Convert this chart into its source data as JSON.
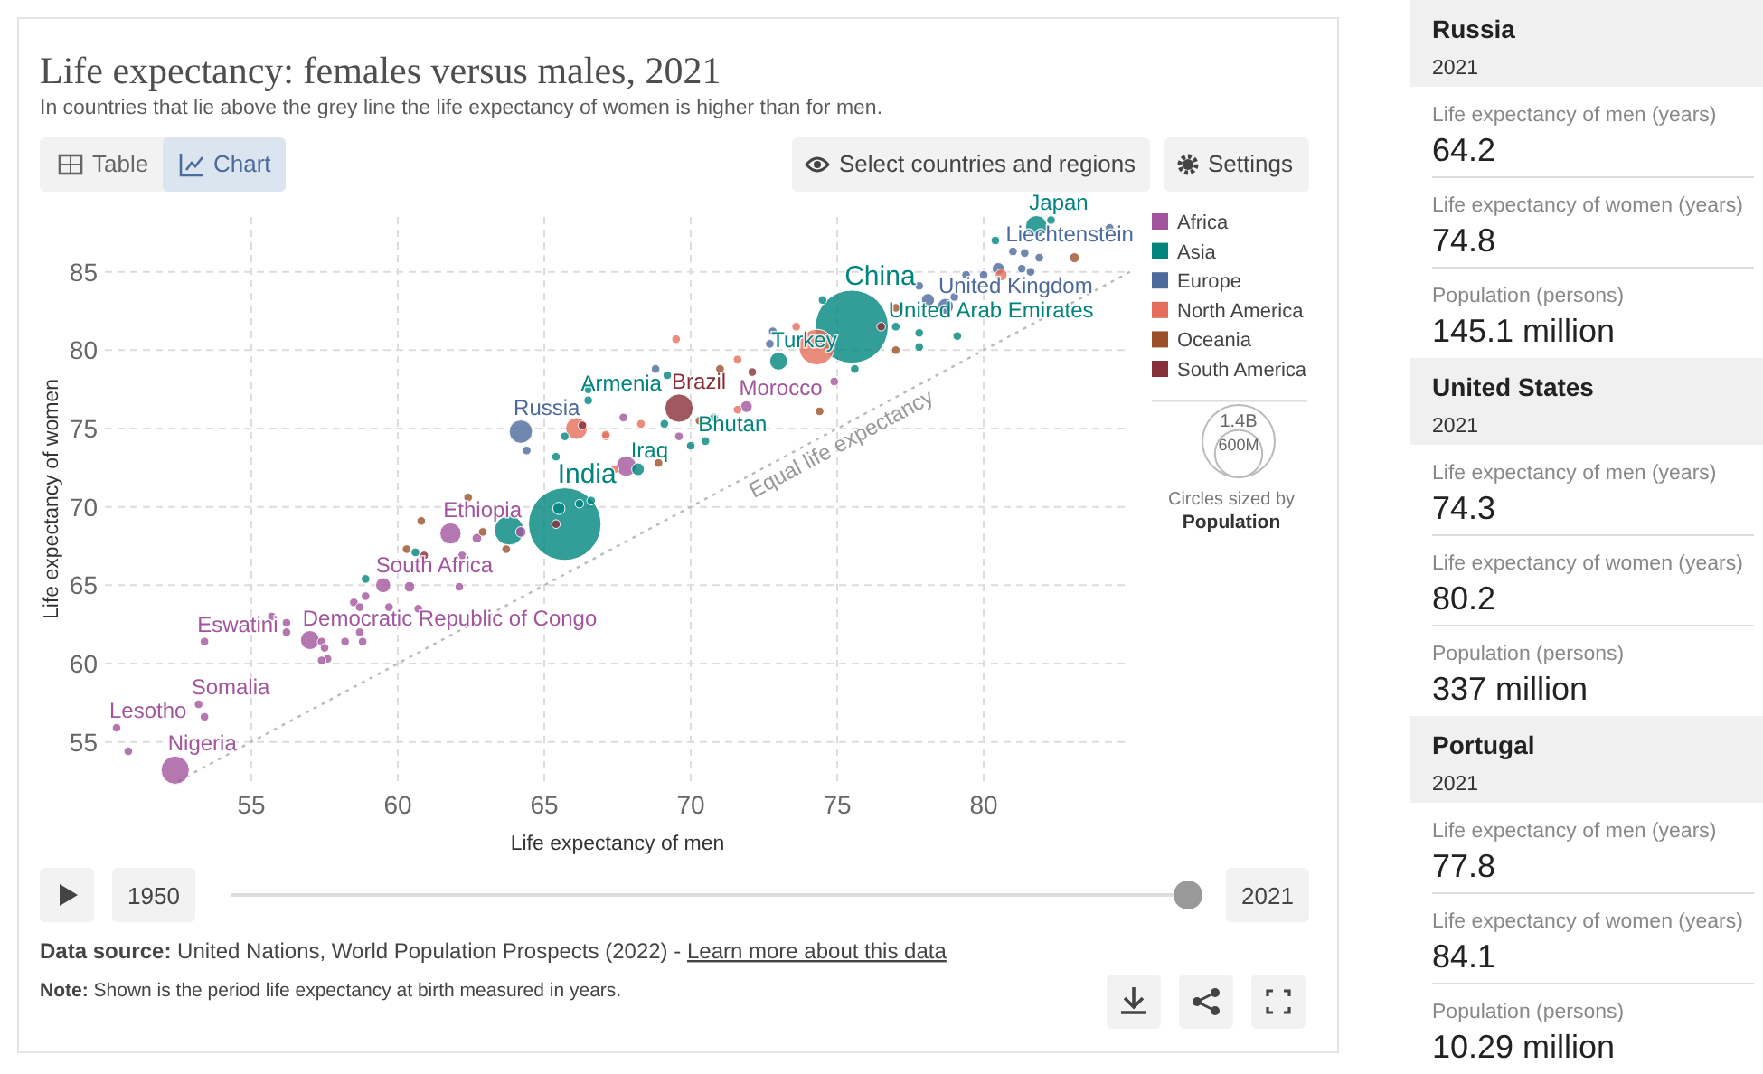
{
  "chart_data": [
    {
      "type": "bubble",
      "title": "Life expectancy: females versus males, 2021",
      "subtitle": "In countries that lie above the grey line the life expectancy of women is higher than for men.",
      "xlabel": "Life expectancy of men",
      "ylabel": "Life expectancy of women",
      "xlim": [
        50,
        85
      ],
      "ylim": [
        52.5,
        88.5
      ],
      "xticks": [
        55,
        60,
        65,
        70,
        75,
        80
      ],
      "yticks": [
        55,
        60,
        65,
        70,
        75,
        80,
        85
      ],
      "grid": true,
      "legend": "top right",
      "marker": "circle",
      "size_legend": [
        {
          "value": 1400,
          "label": "1.4B"
        },
        {
          "value": 600,
          "label": "600M"
        }
      ],
      "series": [
        {
          "name": "Africa",
          "color": "#a2559c",
          "x": [
            52.4,
            50.4,
            50.8,
            53.2,
            53.4,
            53.4,
            55.7,
            56.2,
            56.2,
            57.0,
            57.4,
            57.5,
            57.6,
            57.4,
            58.2,
            58.8,
            58.7,
            58.5,
            58.7,
            58.9,
            59.5,
            59.7,
            60.7,
            60.4,
            62.1,
            62.2,
            61.8,
            62.7,
            64.2,
            67.8,
            67.7,
            69.6,
            71.9,
            74.9
          ],
          "values": [
            53.2,
            55.9,
            54.4,
            57.4,
            56.6,
            61.4,
            63.0,
            62.6,
            62.0,
            61.5,
            61.4,
            61.0,
            60.3,
            60.2,
            61.4,
            61.4,
            62.0,
            63.9,
            63.6,
            64.3,
            65.0,
            63.6,
            63.5,
            64.9,
            64.9,
            66.9,
            68.3,
            68.0,
            68.4,
            72.6,
            75.7,
            74.5,
            76.4,
            78.0
          ],
          "sizes": [
            213,
            20,
            20,
            20,
            20,
            20,
            20,
            20,
            20,
            96,
            20,
            20,
            20,
            20,
            20,
            20,
            20,
            20,
            20,
            20,
            60,
            20,
            20,
            30,
            20,
            20,
            120,
            25,
            30,
            109,
            20,
            20,
            37,
            20
          ]
        },
        {
          "name": "Asia",
          "color": "#00847e",
          "x": [
            58.9,
            60.6,
            63.8,
            65.7,
            65.5,
            66.6,
            66.2,
            65.4,
            65.7,
            66.5,
            66.5,
            68.2,
            69.2,
            70.8,
            69.1,
            70.0,
            70.5,
            73.0,
            74.5,
            75.5,
            75.6,
            77.0,
            77.8,
            77.8,
            79.1,
            80.4,
            81.8,
            82.3
          ],
          "values": [
            65.4,
            67.1,
            68.5,
            68.9,
            69.9,
            70.4,
            70.2,
            73.2,
            74.5,
            77.5,
            76.8,
            72.4,
            78.4,
            75.7,
            75.3,
            73.9,
            74.2,
            79.3,
            83.2,
            81.5,
            78.8,
            81.5,
            81.1,
            80.2,
            80.9,
            87.0,
            87.9,
            88.3
          ],
          "sizes": [
            20,
            20,
            231,
            1408,
            40,
            20,
            20,
            20,
            20,
            20,
            20,
            43,
            20,
            20,
            20,
            20,
            20,
            85,
            20,
            1425,
            20,
            20,
            20,
            20,
            20,
            20,
            124,
            20
          ]
        },
        {
          "name": "Europe",
          "color": "#4c6a9c",
          "x": [
            64.2,
            64.4,
            68.8,
            72.8,
            72.7,
            78.1,
            78.7,
            77.8,
            79.0,
            79.4,
            80.0,
            80.5,
            81.0,
            81.4,
            81.9,
            81.3,
            81.6,
            84.3
          ],
          "values": [
            74.8,
            73.6,
            78.8,
            81.2,
            80.4,
            83.2,
            82.8,
            84.1,
            83.4,
            84.8,
            84.8,
            85.2,
            86.3,
            86.2,
            85.9,
            85.2,
            85.0,
            87.8
          ],
          "sizes": [
            145.1,
            20,
            20,
            20,
            20,
            45,
            67,
            20,
            20,
            20,
            20,
            40,
            20,
            20,
            20,
            20,
            20,
            20
          ]
        },
        {
          "name": "North America",
          "color": "#e56e5a",
          "x": [
            66.1,
            67.1,
            67.4,
            68.3,
            67.1,
            69.5,
            71.6,
            71.6,
            73.6,
            74.3,
            80.6
          ],
          "values": [
            75.0,
            74.5,
            72.4,
            75.3,
            74.6,
            80.7,
            79.4,
            76.2,
            81.5,
            80.2,
            84.8
          ],
          "sizes": [
            126,
            20,
            20,
            20,
            20,
            20,
            20,
            20,
            20,
            337,
            38
          ]
        },
        {
          "name": "Oceania",
          "color": "#9a5129",
          "x": [
            60.3,
            60.8,
            62.4,
            62.9,
            63.7,
            68.9,
            71.0,
            70.3,
            74.4,
            77.0,
            77.0,
            83.1
          ],
          "values": [
            67.3,
            69.1,
            70.6,
            68.4,
            67.3,
            72.8,
            78.8,
            75.5,
            76.1,
            82.7,
            80.0,
            85.9
          ],
          "sizes": [
            20,
            20,
            20,
            20,
            20,
            20,
            20,
            20,
            20,
            20,
            20,
            26
          ]
        },
        {
          "name": "South America",
          "color": "#883039",
          "x": [
            60.9,
            65.4,
            66.3,
            69.6,
            72.1,
            76.5
          ],
          "values": [
            66.9,
            68.9,
            75.2,
            76.3,
            78.6,
            81.5
          ],
          "sizes": [
            20,
            20,
            20,
            214,
            20,
            20
          ]
        },
        {
          "name": "Equal life expectancy",
          "type": "line",
          "color": "#bbbbbb",
          "line_style": "dotted",
          "marker": "none",
          "x": [
            52.5,
            85
          ],
          "values": [
            52.5,
            85
          ]
        }
      ],
      "annotations": [
        "Table",
        "Chart",
        "Select countries and regions",
        "Settings",
        "1950",
        "2021",
        "Circles sized by",
        "Population",
        "Data source: United Nations, World Population Prospects (2022) - Learn more about this data",
        "Note: Shown is the period life expectancy at birth measured in years.",
        {
          "text": "Nigeria",
          "x": 52.4,
          "y": 53.2
        },
        {
          "text": "Lesotho",
          "x": 50.4,
          "y": 55.9
        },
        {
          "text": "Somalia",
          "x": 53.2,
          "y": 57.4
        },
        {
          "text": "Eswatini",
          "x": 53.4,
          "y": 61.4
        },
        {
          "text": "Democratic Republic of Congo",
          "x": 57.0,
          "y": 61.5
        },
        {
          "text": "South Africa",
          "x": 59.5,
          "y": 65.0
        },
        {
          "text": "Ethiopia",
          "x": 61.8,
          "y": 68.3
        },
        {
          "text": "India",
          "x": 65.7,
          "y": 68.9
        },
        {
          "text": "Russia",
          "x": 64.2,
          "y": 74.8
        },
        {
          "text": "Armenia",
          "x": 66.5,
          "y": 76.8
        },
        {
          "text": "Iraq",
          "x": 68.2,
          "y": 72.4
        },
        {
          "text": "Brazil",
          "x": 69.6,
          "y": 76.3
        },
        {
          "text": "Bhutan",
          "x": 70.5,
          "y": 74.2
        },
        {
          "text": "Morocco",
          "x": 71.9,
          "y": 76.4
        },
        {
          "text": "Turkey",
          "x": 73.0,
          "y": 79.3
        },
        {
          "text": "China",
          "x": 75.5,
          "y": 81.5
        },
        {
          "text": "United Arab Emirates",
          "x": 77.0,
          "y": 81.5
        },
        {
          "text": "United Kingdom",
          "x": 78.7,
          "y": 82.8
        },
        {
          "text": "Liechtenstein",
          "x": 81.0,
          "y": 86.3
        },
        {
          "text": "Japan",
          "x": 81.8,
          "y": 87.9
        }
      ]
    },
    {
      "type": "other",
      "title": "Russia",
      "subtitle": "2021",
      "annotations": [
        "Life expectancy of men (years)",
        "64.2",
        "Life expectancy of women (years)",
        "74.8",
        "Population (persons)",
        "145.1 million"
      ]
    },
    {
      "type": "other",
      "title": "United States",
      "subtitle": "2021",
      "annotations": [
        "Life expectancy of men (years)",
        "74.3",
        "Life expectancy of women (years)",
        "80.2",
        "Population (persons)",
        "337 million"
      ]
    },
    {
      "type": "other",
      "title": "Portugal",
      "subtitle": "2021",
      "annotations": [
        "Life expectancy of men (years)",
        "77.8",
        "Life expectancy of women (years)",
        "84.1",
        "Population (persons)",
        "10.29 million"
      ]
    }
  ]
}
